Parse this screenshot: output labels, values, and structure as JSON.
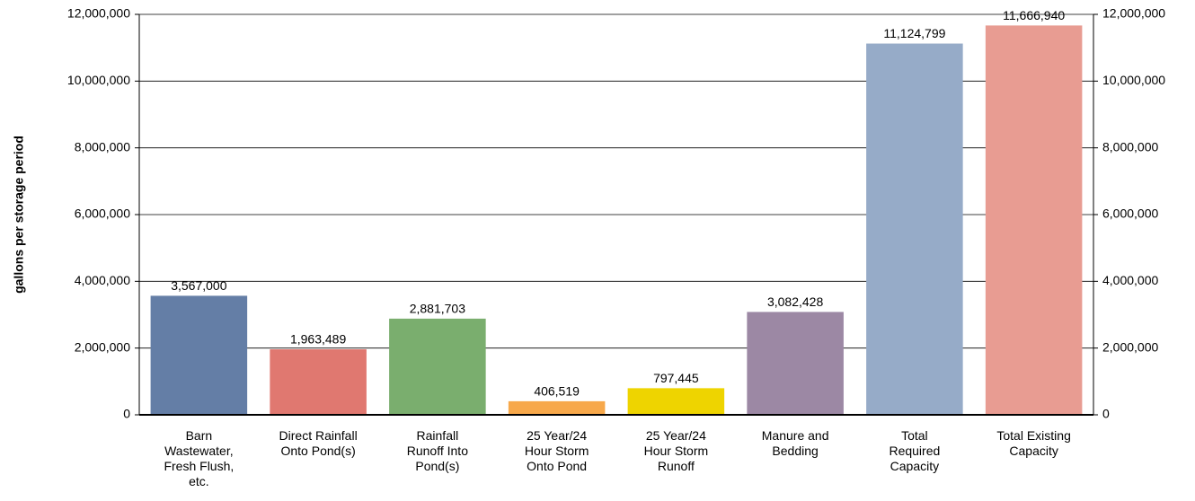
{
  "chart_data": {
    "type": "bar",
    "y_label": "gallons per storage period",
    "categories": [
      "Barn\nWastewater,\nFresh Flush,\netc.",
      "Direct Rainfall\nOnto Pond(s)",
      "Rainfall\nRunoff Into\nPond(s)",
      "25 Year/24\nHour Storm\nOnto Pond",
      "25 Year/24\nHour Storm\nRunoff",
      "Manure and\nBedding",
      "Total\nRequired\nCapacity",
      "Total Existing\nCapacity"
    ],
    "values": [
      3567000,
      1963489,
      2881703,
      406519,
      797445,
      3082428,
      11124799,
      11666940
    ],
    "value_labels": [
      "3,567,000",
      "1,963,489",
      "2,881,703",
      "406,519",
      "797,445",
      "3,082,428",
      "11,124,799",
      "11,666,940"
    ],
    "colors": [
      "#647ea6",
      "#e07870",
      "#7aae6e",
      "#f7a84a",
      "#eed400",
      "#9c88a4",
      "#96abc8",
      "#e89c92"
    ],
    "ylim": [
      0,
      12000000
    ],
    "yticks": [
      0,
      {
        "value": 2000000,
        "label": "2,000,000"
      },
      {
        "value": 4000000,
        "label": "4,000,000"
      },
      {
        "value": 6000000,
        "label": "6,000,000"
      },
      {
        "value": 8000000,
        "label": "8,000,000"
      },
      {
        "value": 10000000,
        "label": "10,000,000"
      },
      {
        "value": 12000000,
        "label": "12,000,000"
      }
    ],
    "y2lim": [
      0,
      12000000
    ],
    "y2ticks": [
      0,
      {
        "value": 2000000,
        "label": "2,000,000"
      },
      {
        "value": 4000000,
        "label": "4,000,000"
      },
      {
        "value": 6000000,
        "label": "6,000,000"
      },
      {
        "value": 8000000,
        "label": "8,000,000"
      },
      {
        "value": 10000000,
        "label": "10,000,000"
      },
      {
        "value": 12000000,
        "label": "12,000,000"
      }
    ],
    "grid": true
  }
}
